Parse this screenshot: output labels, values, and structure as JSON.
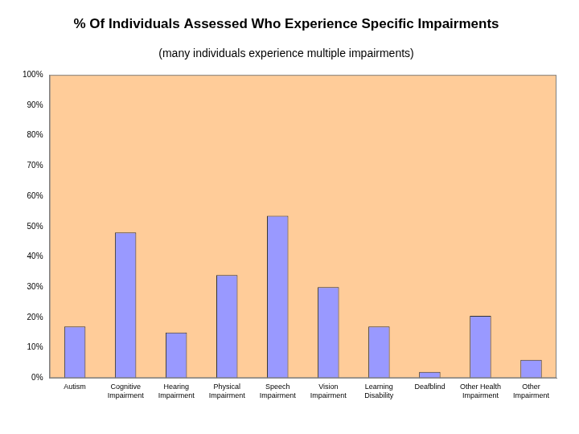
{
  "chart_data": {
    "type": "bar",
    "title": "% Of Individuals Assessed Who Experience Specific Impairments",
    "subtitle": "(many individuals experience multiple impairments)",
    "categories": [
      "Autism",
      "Cognitive Impairment",
      "Hearing Impairment",
      "Physical Impairment",
      "Speech Impairment",
      "Vision Impairment",
      "Learning Disability",
      "Deafblind",
      "Other Health Impairment",
      "Other Impairment"
    ],
    "values": [
      17,
      48,
      15,
      34,
      53.5,
      30,
      17,
      2,
      20.5,
      6
    ],
    "color": "#9999ff",
    "ylim": [
      0,
      100
    ],
    "yticks": [
      {
        "value": 0,
        "label": "0%"
      },
      {
        "value": 10,
        "label": "10%"
      },
      {
        "value": 20,
        "label": "20%"
      },
      {
        "value": 30,
        "label": "30%"
      },
      {
        "value": 40,
        "label": "40%"
      },
      {
        "value": 50,
        "label": "50%"
      },
      {
        "value": 60,
        "label": "60%"
      },
      {
        "value": 70,
        "label": "70%"
      },
      {
        "value": 80,
        "label": "80%"
      },
      {
        "value": 90,
        "label": "90%"
      },
      {
        "value": 100,
        "label": "100%"
      }
    ],
    "grid": false
  }
}
